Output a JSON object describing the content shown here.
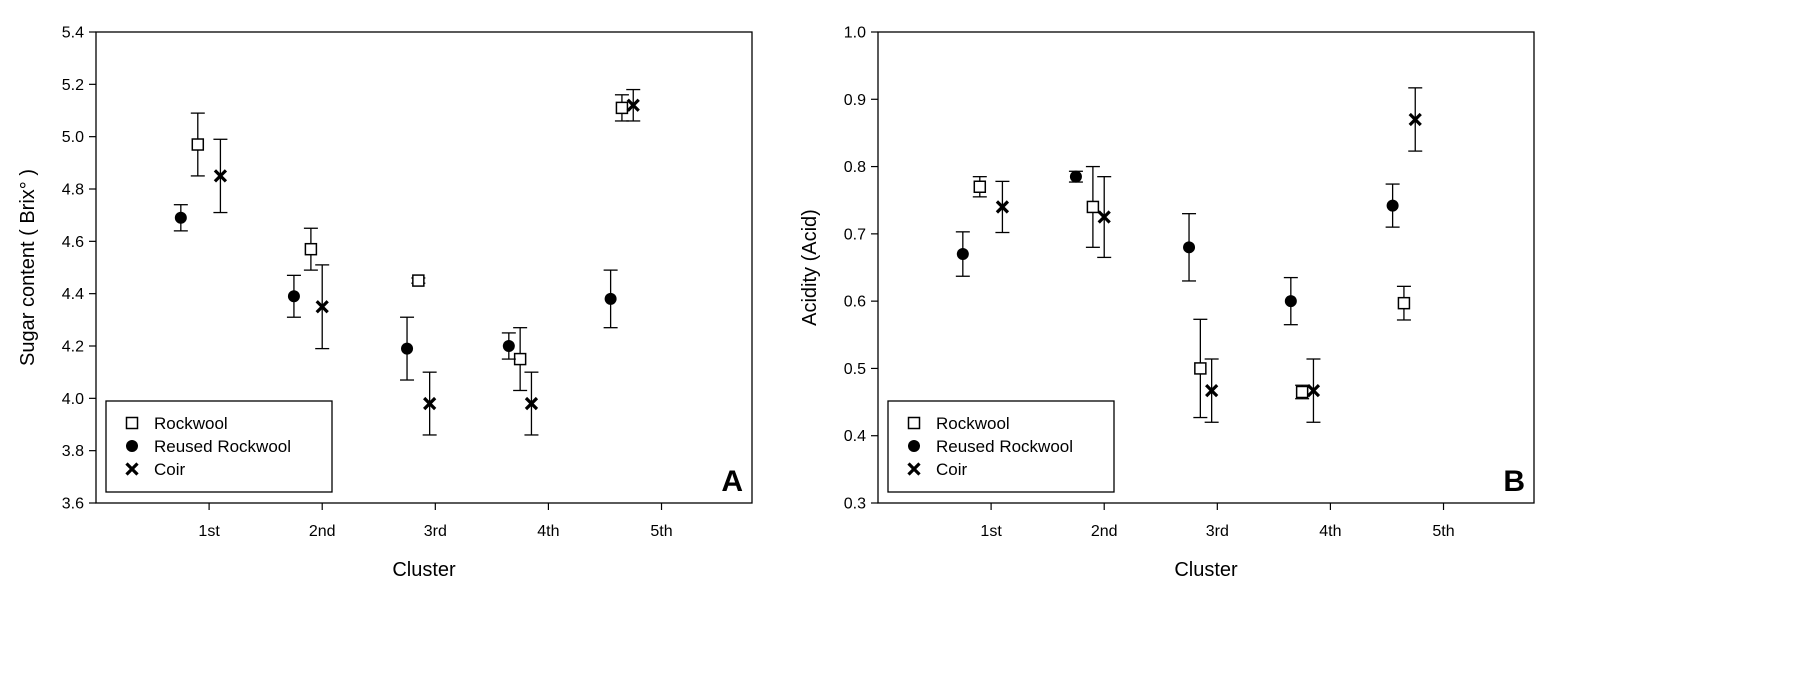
{
  "chart_data": [
    {
      "type": "scatter",
      "panel_label": "A",
      "xlabel": "Cluster",
      "ylabel": "Sugar content ( Brix° )",
      "categories": [
        "1st",
        "2nd",
        "3rd",
        "4th",
        "5th"
      ],
      "ylim": [
        3.6,
        5.4
      ],
      "yticks": [
        "3.6",
        "3.8",
        "4.0",
        "4.2",
        "4.4",
        "4.6",
        "4.8",
        "5.0",
        "5.2",
        "5.4"
      ],
      "grid": false,
      "legend_position": "bottom-left",
      "series": [
        {
          "name": "Rockwool",
          "marker": "open-square",
          "x": [
            0.9,
            1.9,
            2.85,
            3.75,
            4.65
          ],
          "values": [
            4.97,
            4.57,
            4.45,
            4.15,
            5.11
          ],
          "err": [
            0.12,
            0.08,
            0.01,
            0.12,
            0.05
          ]
        },
        {
          "name": "Reused Rockwool",
          "marker": "filled-circle",
          "x": [
            0.75,
            1.75,
            2.75,
            3.65,
            4.55
          ],
          "values": [
            4.69,
            4.39,
            4.19,
            4.2,
            4.38
          ],
          "err": [
            0.05,
            0.08,
            0.12,
            0.05,
            0.11
          ]
        },
        {
          "name": "Coir",
          "marker": "x",
          "x": [
            1.1,
            2.0,
            2.95,
            3.85,
            4.75
          ],
          "values": [
            4.85,
            4.35,
            3.98,
            3.98,
            5.12
          ],
          "err": [
            0.14,
            0.16,
            0.12,
            0.12,
            0.06
          ]
        }
      ]
    },
    {
      "type": "scatter",
      "panel_label": "B",
      "xlabel": "Cluster",
      "ylabel": "Acidity (Acid)",
      "categories": [
        "1st",
        "2nd",
        "3rd",
        "4th",
        "5th"
      ],
      "ylim": [
        0.3,
        1.0
      ],
      "yticks": [
        "0.3",
        "0.4",
        "0.5",
        "0.6",
        "0.7",
        "0.8",
        "0.9",
        "1.0"
      ],
      "grid": false,
      "legend_position": "bottom-left",
      "series": [
        {
          "name": "Rockwool",
          "marker": "open-square",
          "x": [
            0.9,
            1.9,
            2.85,
            3.75,
            4.65
          ],
          "values": [
            0.77,
            0.74,
            0.5,
            0.465,
            0.597
          ],
          "err": [
            0.015,
            0.06,
            0.073,
            0.01,
            0.025
          ]
        },
        {
          "name": "Reused Rockwool",
          "marker": "filled-circle",
          "x": [
            0.75,
            1.75,
            2.75,
            3.65,
            4.55
          ],
          "values": [
            0.67,
            0.785,
            0.68,
            0.6,
            0.742
          ],
          "err": [
            0.033,
            0.008,
            0.05,
            0.035,
            0.032
          ]
        },
        {
          "name": "Coir",
          "marker": "x",
          "x": [
            1.1,
            2.0,
            2.95,
            3.85,
            4.75
          ],
          "values": [
            0.74,
            0.725,
            0.467,
            0.467,
            0.87
          ],
          "err": [
            0.038,
            0.06,
            0.047,
            0.047,
            0.047
          ]
        }
      ]
    }
  ]
}
